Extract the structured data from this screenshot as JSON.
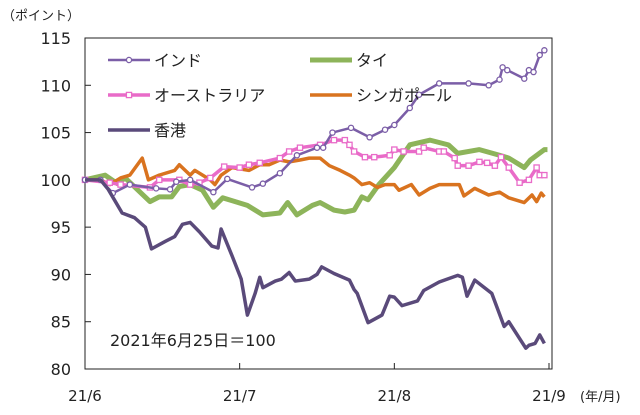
{
  "chart_data": {
    "type": "line",
    "ylabel": "（ポイント）",
    "xlabel": "(年/月)",
    "annotation": "2021年6月25日＝100",
    "ylim": [
      80,
      115
    ],
    "yticks": [
      80,
      85,
      90,
      95,
      100,
      105,
      110,
      115
    ],
    "xticks": [
      {
        "value": 6,
        "label": "21/6"
      },
      {
        "value": 7,
        "label": "21/7"
      },
      {
        "value": 8,
        "label": "21/8"
      },
      {
        "value": 9,
        "label": "21/9"
      }
    ],
    "xlim": [
      6,
      9
    ],
    "grid": false,
    "legend_position": "top-left",
    "series": [
      {
        "name": "インド",
        "color": "#7B5EA7",
        "marker": "circle",
        "points": [
          [
            6.0,
            100
          ],
          [
            6.1,
            100
          ],
          [
            6.18,
            98.6
          ],
          [
            6.29,
            99.5
          ],
          [
            6.46,
            99.1
          ],
          [
            6.55,
            99.0
          ],
          [
            6.59,
            99.8
          ],
          [
            6.68,
            100
          ],
          [
            6.83,
            98.7
          ],
          [
            6.92,
            100.1
          ],
          [
            7.08,
            99.2
          ],
          [
            7.15,
            99.6
          ],
          [
            7.26,
            100.7
          ],
          [
            7.37,
            102.6
          ],
          [
            7.5,
            103.4
          ],
          [
            7.54,
            103.4
          ],
          [
            7.6,
            105.0
          ],
          [
            7.72,
            105.5
          ],
          [
            7.84,
            104.5
          ],
          [
            7.94,
            105.3
          ],
          [
            8.0,
            105.8
          ],
          [
            8.1,
            107.6
          ],
          [
            8.16,
            109.0
          ],
          [
            8.29,
            110.2
          ],
          [
            8.48,
            110.2
          ],
          [
            8.61,
            110.0
          ],
          [
            8.68,
            110.6
          ],
          [
            8.7,
            111.9
          ],
          [
            8.73,
            111.6
          ],
          [
            8.84,
            110.7
          ],
          [
            8.87,
            111.6
          ],
          [
            8.9,
            111.4
          ],
          [
            8.94,
            113.2
          ],
          [
            8.97,
            113.7
          ]
        ]
      },
      {
        "name": "タイ",
        "color": "#8DB45A",
        "marker": "none",
        "points": [
          [
            6.0,
            100
          ],
          [
            6.13,
            100.5
          ],
          [
            6.21,
            99.6
          ],
          [
            6.26,
            100.2
          ],
          [
            6.42,
            97.7
          ],
          [
            6.48,
            98.2
          ],
          [
            6.56,
            98.2
          ],
          [
            6.61,
            99.3
          ],
          [
            6.68,
            99.5
          ],
          [
            6.76,
            98.9
          ],
          [
            6.83,
            97.1
          ],
          [
            6.89,
            98.1
          ],
          [
            6.95,
            97.8
          ],
          [
            7.05,
            97.3
          ],
          [
            7.15,
            96.3
          ],
          [
            7.26,
            96.5
          ],
          [
            7.31,
            97.6
          ],
          [
            7.37,
            96.3
          ],
          [
            7.47,
            97.3
          ],
          [
            7.52,
            97.6
          ],
          [
            7.61,
            96.8
          ],
          [
            7.68,
            96.6
          ],
          [
            7.74,
            96.8
          ],
          [
            7.79,
            98.2
          ],
          [
            7.83,
            97.9
          ],
          [
            7.9,
            99.5
          ],
          [
            8.0,
            101.3
          ],
          [
            8.1,
            103.7
          ],
          [
            8.23,
            104.2
          ],
          [
            8.35,
            103.7
          ],
          [
            8.41,
            102.8
          ],
          [
            8.55,
            103.2
          ],
          [
            8.68,
            102.6
          ],
          [
            8.74,
            102.3
          ],
          [
            8.84,
            101.3
          ],
          [
            8.88,
            102.1
          ],
          [
            8.97,
            103.2
          ],
          [
            8.99,
            103.2
          ]
        ]
      },
      {
        "name": "オーストラリア",
        "color": "#E96BC8",
        "marker": "square",
        "points": [
          [
            6.0,
            100
          ],
          [
            6.16,
            99.7
          ],
          [
            6.23,
            99.5
          ],
          [
            6.42,
            99.2
          ],
          [
            6.48,
            100
          ],
          [
            6.61,
            100
          ],
          [
            6.68,
            99.5
          ],
          [
            6.74,
            99.7
          ],
          [
            6.81,
            100.2
          ],
          [
            6.9,
            101.4
          ],
          [
            7.0,
            101.3
          ],
          [
            7.06,
            101.6
          ],
          [
            7.13,
            101.8
          ],
          [
            7.26,
            102.3
          ],
          [
            7.32,
            103.0
          ],
          [
            7.39,
            103.4
          ],
          [
            7.52,
            103.7
          ],
          [
            7.61,
            104.2
          ],
          [
            7.68,
            104.2
          ],
          [
            7.71,
            103.7
          ],
          [
            7.74,
            103.0
          ],
          [
            7.81,
            102.4
          ],
          [
            7.87,
            102.4
          ],
          [
            7.97,
            102.6
          ],
          [
            8.0,
            103.2
          ],
          [
            8.06,
            103.0
          ],
          [
            8.16,
            103.0
          ],
          [
            8.19,
            103.4
          ],
          [
            8.29,
            103.0
          ],
          [
            8.32,
            103.0
          ],
          [
            8.39,
            102.3
          ],
          [
            8.41,
            101.5
          ],
          [
            8.48,
            101.5
          ],
          [
            8.55,
            101.9
          ],
          [
            8.6,
            101.8
          ],
          [
            8.65,
            101.5
          ],
          [
            8.69,
            102.4
          ],
          [
            8.74,
            101.3
          ],
          [
            8.81,
            99.7
          ],
          [
            8.87,
            100.0
          ],
          [
            8.92,
            101.3
          ],
          [
            8.94,
            100.5
          ],
          [
            8.97,
            100.5
          ]
        ]
      },
      {
        "name": "シンガポール",
        "color": "#D9731F",
        "marker": "none",
        "points": [
          [
            6.0,
            100
          ],
          [
            6.1,
            100
          ],
          [
            6.16,
            99.5
          ],
          [
            6.23,
            100.2
          ],
          [
            6.29,
            100.5
          ],
          [
            6.37,
            102.3
          ],
          [
            6.41,
            100.0
          ],
          [
            6.48,
            100.5
          ],
          [
            6.58,
            101.0
          ],
          [
            6.61,
            101.6
          ],
          [
            6.68,
            100.5
          ],
          [
            6.71,
            101.0
          ],
          [
            6.81,
            100.0
          ],
          [
            6.84,
            99.5
          ],
          [
            6.88,
            100.5
          ],
          [
            6.95,
            101.3
          ],
          [
            7.06,
            101.0
          ],
          [
            7.13,
            101.6
          ],
          [
            7.19,
            101.6
          ],
          [
            7.26,
            102.1
          ],
          [
            7.32,
            101.9
          ],
          [
            7.39,
            102.1
          ],
          [
            7.45,
            102.3
          ],
          [
            7.52,
            102.3
          ],
          [
            7.58,
            101.5
          ],
          [
            7.65,
            101.0
          ],
          [
            7.71,
            100.5
          ],
          [
            7.74,
            100.2
          ],
          [
            7.79,
            99.5
          ],
          [
            7.84,
            99.7
          ],
          [
            7.89,
            99.2
          ],
          [
            7.94,
            99.5
          ],
          [
            8.0,
            99.5
          ],
          [
            8.03,
            98.9
          ],
          [
            8.11,
            99.5
          ],
          [
            8.16,
            98.4
          ],
          [
            8.23,
            99.1
          ],
          [
            8.29,
            99.5
          ],
          [
            8.42,
            99.5
          ],
          [
            8.45,
            98.3
          ],
          [
            8.52,
            99.1
          ],
          [
            8.61,
            98.4
          ],
          [
            8.68,
            98.7
          ],
          [
            8.74,
            98.1
          ],
          [
            8.84,
            97.6
          ],
          [
            8.89,
            98.4
          ],
          [
            8.92,
            97.7
          ],
          [
            8.95,
            98.6
          ],
          [
            8.97,
            98.2
          ]
        ]
      },
      {
        "name": "香港",
        "color": "#5A4A7A",
        "marker": "none",
        "points": [
          [
            6.0,
            100
          ],
          [
            6.1,
            100
          ],
          [
            6.15,
            99.0
          ],
          [
            6.24,
            96.5
          ],
          [
            6.32,
            96.0
          ],
          [
            6.39,
            95.0
          ],
          [
            6.43,
            92.7
          ],
          [
            6.52,
            93.5
          ],
          [
            6.58,
            94.0
          ],
          [
            6.63,
            95.3
          ],
          [
            6.68,
            95.5
          ],
          [
            6.74,
            94.5
          ],
          [
            6.82,
            93.0
          ],
          [
            6.86,
            92.8
          ],
          [
            6.88,
            94.8
          ],
          [
            6.95,
            92.0
          ],
          [
            7.01,
            89.5
          ],
          [
            7.05,
            85.7
          ],
          [
            7.1,
            88.0
          ],
          [
            7.13,
            89.7
          ],
          [
            7.15,
            88.6
          ],
          [
            7.23,
            89.3
          ],
          [
            7.27,
            89.5
          ],
          [
            7.32,
            90.2
          ],
          [
            7.36,
            89.3
          ],
          [
            7.45,
            89.5
          ],
          [
            7.5,
            90.0
          ],
          [
            7.53,
            90.8
          ],
          [
            7.61,
            90.1
          ],
          [
            7.71,
            89.4
          ],
          [
            7.74,
            88.4
          ],
          [
            7.76,
            88.0
          ],
          [
            7.83,
            84.9
          ],
          [
            7.92,
            85.7
          ],
          [
            7.97,
            87.7
          ],
          [
            8.0,
            87.6
          ],
          [
            8.05,
            86.7
          ],
          [
            8.15,
            87.2
          ],
          [
            8.19,
            88.3
          ],
          [
            8.29,
            89.2
          ],
          [
            8.41,
            89.9
          ],
          [
            8.44,
            89.7
          ],
          [
            8.47,
            87.7
          ],
          [
            8.52,
            89.4
          ],
          [
            8.63,
            88.0
          ],
          [
            8.71,
            84.5
          ],
          [
            8.74,
            85.0
          ],
          [
            8.85,
            82.2
          ],
          [
            8.87,
            82.5
          ],
          [
            8.91,
            82.7
          ],
          [
            8.94,
            83.6
          ],
          [
            8.97,
            82.7
          ]
        ]
      }
    ]
  }
}
